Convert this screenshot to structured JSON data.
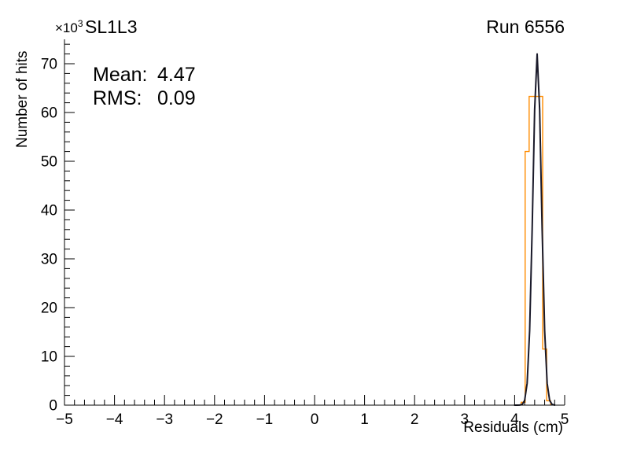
{
  "header": {
    "title": "SL1L3",
    "run_label": "Run 6556",
    "y_multiplier": "×10",
    "y_multiplier_exp": "3"
  },
  "stats": {
    "mean_label": "Mean:",
    "mean_value": "4.47",
    "rms_label": "RMS:",
    "rms_value": "0.09"
  },
  "chart_data": {
    "type": "histogram",
    "title": "SL1L3",
    "run": "Run 6556",
    "xlabel": "Residuals (cm)",
    "ylabel": "Number of hits",
    "y_unit_multiplier": "×10³",
    "xlim": [
      -5,
      5
    ],
    "ylim": [
      0,
      75
    ],
    "xticks": [
      -5,
      -4,
      -3,
      -2,
      -1,
      0,
      1,
      2,
      3,
      4,
      5
    ],
    "yticks": [
      0,
      10,
      20,
      30,
      40,
      50,
      60,
      70
    ],
    "x_minor_step": 0.2,
    "y_minor_step": 2,
    "grid": false,
    "annotations": {
      "mean": 4.47,
      "rms": 0.09
    },
    "series": [
      {
        "name": "residuals-histogram",
        "type": "step",
        "color": "#ff8c00",
        "line_width": 1.4,
        "bin_edges": [
          4.13,
          4.21,
          4.29,
          4.56,
          4.64,
          4.72
        ],
        "counts": [
          0.6,
          52,
          63.3,
          11.5,
          0.9
        ]
      },
      {
        "name": "gaussian-fit",
        "type": "line",
        "color": "#1a1a2a",
        "line_width": 2,
        "x": [
          4.0,
          4.05,
          4.1,
          4.15,
          4.2,
          4.25,
          4.3,
          4.35,
          4.4,
          4.45,
          4.5,
          4.55,
          4.6,
          4.65,
          4.7,
          4.75,
          4.8
        ],
        "y": [
          0,
          0.01,
          0.02,
          0.14,
          0.96,
          4.5,
          15.3,
          36,
          60.6,
          72,
          60.6,
          36,
          15.3,
          4.5,
          0.96,
          0.14,
          0.02
        ]
      }
    ]
  }
}
